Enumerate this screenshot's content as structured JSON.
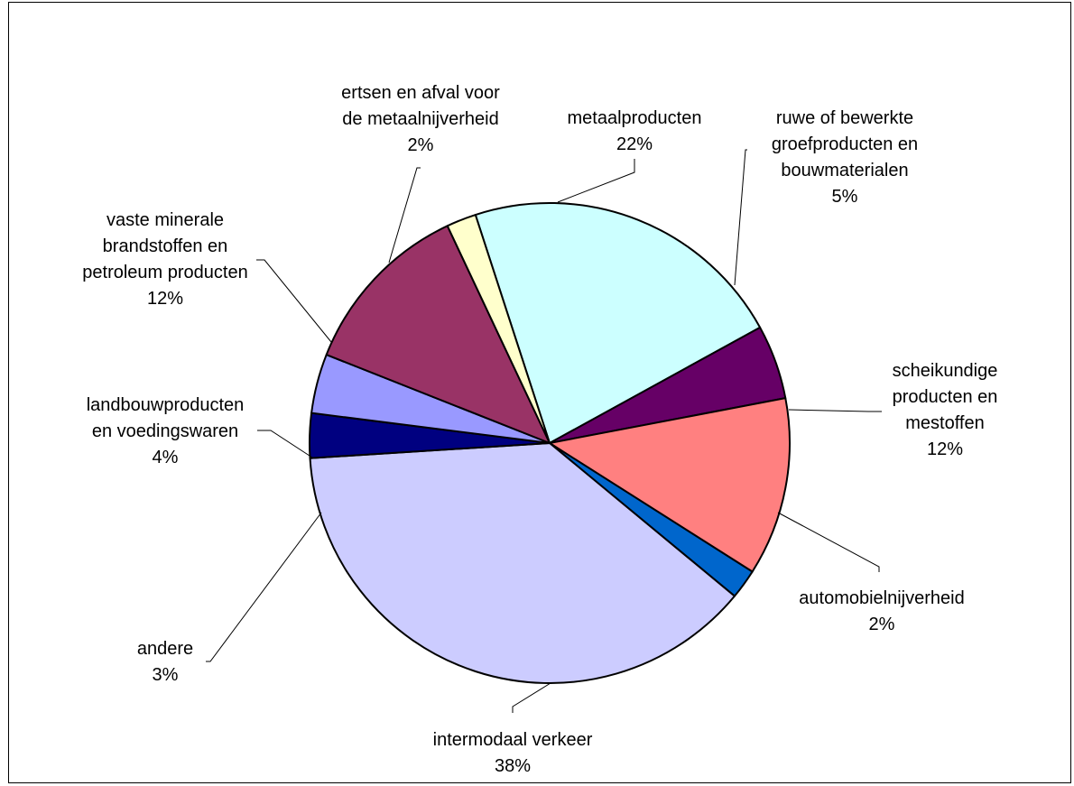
{
  "chart_data": {
    "type": "pie",
    "title": "",
    "slices": [
      {
        "label": "metaalproducten",
        "value": 22,
        "value_label": "22%",
        "color": "#CCFFFF"
      },
      {
        "label": "ruwe of bewerkte groefproducten en bouwmaterialen",
        "value": 5,
        "value_label": "5%",
        "color": "#660066"
      },
      {
        "label": "scheikundige producten en mestoffen",
        "value": 12,
        "value_label": "12%",
        "color": "#FF8080"
      },
      {
        "label": "automobielnijverheid",
        "value": 2,
        "value_label": "2%",
        "color": "#0066CC"
      },
      {
        "label": "intermodaal verkeer",
        "value": 38,
        "value_label": "38%",
        "color": "#CCCCFF"
      },
      {
        "label": "andere",
        "value": 3,
        "value_label": "3%",
        "color": "#000080"
      },
      {
        "label": "landbouwproducten en voedingswaren",
        "value": 4,
        "value_label": "4%",
        "color": "#9999FF"
      },
      {
        "label": "vaste minerale brandstoffen en petroleum producten",
        "value": 12,
        "value_label": "12%",
        "color": "#993366"
      },
      {
        "label": "ertsen en afval voor de metaalnijverheid",
        "value": 2,
        "value_label": "2%",
        "color": "#FFFFCC"
      }
    ]
  }
}
